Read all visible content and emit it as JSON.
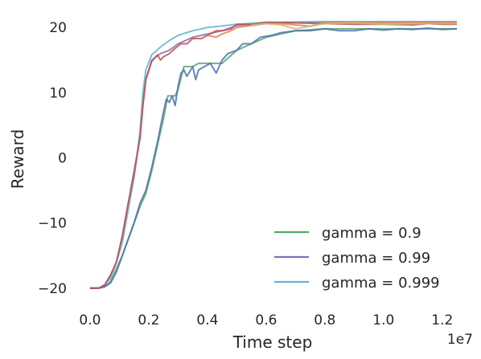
{
  "chart_data": {
    "type": "line",
    "xlabel": "Time step",
    "ylabel": "Reward",
    "x_offset_label": "1e7",
    "xlim": [
      -0.03,
      1.25
    ],
    "ylim": [
      -22,
      22
    ],
    "x_ticks": [
      "0.0",
      "0.2",
      "0.4",
      "0.6",
      "0.8",
      "1.0",
      "1.2"
    ],
    "x_tick_values": [
      0.0,
      0.2,
      0.4,
      0.6,
      0.8,
      1.0,
      1.2
    ],
    "y_ticks": [
      "−20",
      "−10",
      "0",
      "10",
      "20"
    ],
    "y_tick_values": [
      -20,
      -10,
      0,
      10,
      20
    ],
    "grid": false,
    "legend_position": "bottom-right",
    "series": [
      {
        "name": "gamma = 0.9",
        "color": "#55a868",
        "in_legend": true,
        "points": [
          [
            0.0,
            -20
          ],
          [
            0.03,
            -20
          ],
          [
            0.05,
            -19.8
          ],
          [
            0.07,
            -19
          ],
          [
            0.09,
            -17
          ],
          [
            0.11,
            -15
          ],
          [
            0.13,
            -12.5
          ],
          [
            0.15,
            -10
          ],
          [
            0.17,
            -7.5
          ],
          [
            0.19,
            -5.5
          ],
          [
            0.21,
            -2
          ],
          [
            0.23,
            2
          ],
          [
            0.25,
            6
          ],
          [
            0.265,
            9.5
          ],
          [
            0.29,
            9.5
          ],
          [
            0.3,
            10.5
          ],
          [
            0.32,
            14
          ],
          [
            0.35,
            14
          ],
          [
            0.37,
            14.5
          ],
          [
            0.45,
            14.5
          ],
          [
            0.5,
            16.5
          ],
          [
            0.55,
            17.5
          ],
          [
            0.6,
            18.5
          ],
          [
            0.65,
            19
          ],
          [
            0.7,
            19.5
          ],
          [
            0.8,
            19.8
          ],
          [
            1.0,
            19.8
          ],
          [
            1.25,
            19.8
          ]
        ]
      },
      {
        "name": "gamma = 0.99",
        "color": "#8172b2",
        "in_legend": true,
        "points": [
          [
            0.0,
            -20
          ],
          [
            0.03,
            -20
          ],
          [
            0.05,
            -19.5
          ],
          [
            0.07,
            -18
          ],
          [
            0.09,
            -16
          ],
          [
            0.11,
            -12
          ],
          [
            0.13,
            -7
          ],
          [
            0.15,
            -2
          ],
          [
            0.17,
            3
          ],
          [
            0.18,
            8
          ],
          [
            0.19,
            12
          ],
          [
            0.21,
            15
          ],
          [
            0.24,
            16
          ],
          [
            0.27,
            16.5
          ],
          [
            0.3,
            17.5
          ],
          [
            0.35,
            18.5
          ],
          [
            0.4,
            19
          ],
          [
            0.45,
            19.5
          ],
          [
            0.5,
            20.3
          ],
          [
            0.6,
            20.7
          ],
          [
            0.8,
            20.8
          ],
          [
            1.0,
            20.8
          ],
          [
            1.25,
            20.8
          ]
        ]
      },
      {
        "name": "gamma = 0.999",
        "color": "#64b5cd",
        "in_legend": true,
        "points": [
          [
            0.0,
            -20
          ],
          [
            0.03,
            -20
          ],
          [
            0.05,
            -19.5
          ],
          [
            0.07,
            -18.5
          ],
          [
            0.09,
            -16
          ],
          [
            0.11,
            -13
          ],
          [
            0.13,
            -8
          ],
          [
            0.15,
            -3
          ],
          [
            0.17,
            4
          ],
          [
            0.18,
            10
          ],
          [
            0.19,
            13.5
          ],
          [
            0.21,
            15.8
          ],
          [
            0.24,
            17
          ],
          [
            0.27,
            18
          ],
          [
            0.3,
            18.8
          ],
          [
            0.35,
            19.5
          ],
          [
            0.4,
            20
          ],
          [
            0.5,
            20.5
          ],
          [
            0.6,
            20.8
          ],
          [
            0.8,
            20.9
          ],
          [
            1.0,
            20.9
          ],
          [
            1.25,
            20.9
          ]
        ]
      },
      {
        "name": "",
        "color": "#4c72b0",
        "in_legend": false,
        "points": [
          [
            0.0,
            -20
          ],
          [
            0.03,
            -20
          ],
          [
            0.05,
            -19.8
          ],
          [
            0.07,
            -19.2
          ],
          [
            0.09,
            -17.5
          ],
          [
            0.11,
            -15
          ],
          [
            0.13,
            -12.5
          ],
          [
            0.15,
            -10
          ],
          [
            0.17,
            -7
          ],
          [
            0.19,
            -5
          ],
          [
            0.21,
            -1.5
          ],
          [
            0.23,
            2.5
          ],
          [
            0.25,
            7
          ],
          [
            0.26,
            9
          ],
          [
            0.27,
            8.5
          ],
          [
            0.28,
            9.5
          ],
          [
            0.29,
            8
          ],
          [
            0.3,
            11
          ],
          [
            0.31,
            13
          ],
          [
            0.32,
            13.5
          ],
          [
            0.33,
            12.5
          ],
          [
            0.35,
            14
          ],
          [
            0.36,
            12
          ],
          [
            0.37,
            13.5
          ],
          [
            0.39,
            14
          ],
          [
            0.41,
            14.5
          ],
          [
            0.43,
            13
          ],
          [
            0.45,
            15
          ],
          [
            0.47,
            16
          ],
          [
            0.5,
            16.5
          ],
          [
            0.52,
            17.5
          ],
          [
            0.55,
            17.5
          ],
          [
            0.58,
            18.5
          ],
          [
            0.62,
            18.8
          ],
          [
            0.65,
            19.2
          ],
          [
            0.7,
            19.5
          ],
          [
            0.75,
            19.5
          ],
          [
            0.8,
            19.8
          ],
          [
            0.85,
            19.5
          ],
          [
            0.9,
            19.5
          ],
          [
            0.95,
            19.8
          ],
          [
            1.0,
            19.6
          ],
          [
            1.05,
            19.8
          ],
          [
            1.1,
            19.7
          ],
          [
            1.15,
            19.9
          ],
          [
            1.2,
            19.7
          ],
          [
            1.25,
            19.8
          ]
        ]
      },
      {
        "name": "",
        "color": "#c44e52",
        "in_legend": false,
        "points": [
          [
            0.0,
            -20
          ],
          [
            0.03,
            -20
          ],
          [
            0.05,
            -19.5
          ],
          [
            0.07,
            -18
          ],
          [
            0.09,
            -16
          ],
          [
            0.11,
            -12
          ],
          [
            0.13,
            -7
          ],
          [
            0.15,
            -2.5
          ],
          [
            0.17,
            3
          ],
          [
            0.18,
            8
          ],
          [
            0.19,
            12
          ],
          [
            0.21,
            14.8
          ],
          [
            0.23,
            15.8
          ],
          [
            0.24,
            15
          ],
          [
            0.25,
            15.5
          ],
          [
            0.27,
            16
          ],
          [
            0.29,
            16.8
          ],
          [
            0.31,
            17.5
          ],
          [
            0.33,
            17.5
          ],
          [
            0.35,
            18.3
          ],
          [
            0.38,
            18.3
          ],
          [
            0.4,
            18.8
          ],
          [
            0.43,
            19.5
          ],
          [
            0.45,
            19.5
          ],
          [
            0.48,
            19.8
          ],
          [
            0.5,
            20.5
          ],
          [
            0.55,
            20.5
          ],
          [
            0.6,
            20.8
          ],
          [
            0.7,
            20.7
          ],
          [
            0.8,
            20.6
          ],
          [
            0.9,
            20.5
          ],
          [
            1.0,
            20.5
          ],
          [
            1.1,
            20.4
          ],
          [
            1.15,
            20.6
          ],
          [
            1.2,
            20.5
          ],
          [
            1.25,
            20.5
          ]
        ]
      },
      {
        "name": "",
        "color": "#dd8452",
        "in_legend": false,
        "points": [
          [
            0.4,
            18.8
          ],
          [
            0.43,
            18.5
          ],
          [
            0.45,
            19
          ],
          [
            0.48,
            19.5
          ],
          [
            0.5,
            20
          ],
          [
            0.55,
            20.3
          ],
          [
            0.6,
            20.6
          ],
          [
            0.65,
            20.6
          ],
          [
            0.7,
            20.4
          ],
          [
            0.75,
            20.2
          ],
          [
            0.8,
            20.8
          ],
          [
            0.9,
            20.8
          ],
          [
            1.0,
            20.8
          ],
          [
            1.1,
            20.8
          ],
          [
            1.2,
            20.8
          ],
          [
            1.25,
            20.8
          ]
        ]
      },
      {
        "name": "",
        "color": "#ccb974",
        "in_legend": false,
        "points": [
          [
            0.55,
            20.4
          ],
          [
            0.6,
            20.6
          ],
          [
            0.65,
            20.4
          ],
          [
            0.7,
            19.8
          ],
          [
            0.75,
            20.2
          ],
          [
            0.8,
            20.6
          ],
          [
            0.9,
            20.7
          ],
          [
            1.0,
            20.5
          ],
          [
            1.1,
            20.6
          ],
          [
            1.2,
            20.6
          ],
          [
            1.25,
            20.6
          ]
        ]
      }
    ]
  }
}
